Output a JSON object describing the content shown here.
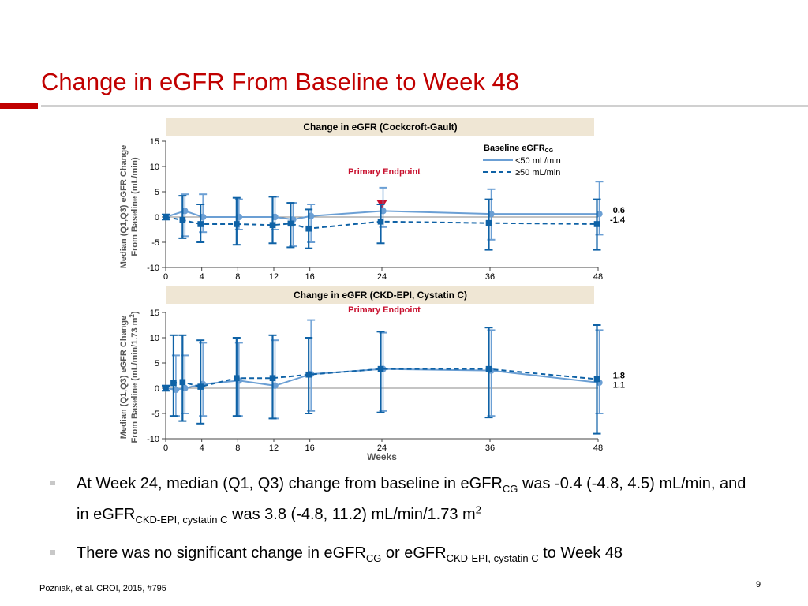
{
  "slide": {
    "title": "Change in eGFR From Baseline to Week 48",
    "page_number": "9",
    "footer": "Pozniak, et al. CROI, 2015, #795"
  },
  "colors": {
    "accent": "#c00000",
    "series_lt50": "#6b9fd4",
    "series_ge50": "#0f62a6",
    "panel_header": "#efe6d4",
    "primary_marker": "#c8102e"
  },
  "bullets": [
    {
      "t1": "At Week 24, median (Q1, Q3) change from baseline in eGFR",
      "sub1": "CG",
      "t2": " was -0.4 (-4.8, 4.5) mL/min, and in eGFR",
      "sub2": "CKD-EPI, cystatin C",
      "t3": " was 3.8 (-4.8, 11.2) mL/min/1.73 m",
      "sup1": "2"
    },
    {
      "t1": "There was no significant change in eGFR",
      "sub1": "CG",
      "t2": " or eGFR",
      "sub2": "CKD-EPI, cystatin C",
      "t3": " to Week 48"
    }
  ],
  "chart_data": [
    {
      "type": "line",
      "title": "Change in eGFR (Cockcroft-Gault)",
      "ylabel_line1": "Median (Q1,Q3) eGFR Change",
      "ylabel_line2": "From Baseline (mL/min)",
      "xlabel": "",
      "x": [
        0,
        1,
        2,
        3,
        5,
        10,
        14,
        17,
        26,
        38,
        50
      ],
      "xticks": [
        0,
        4,
        8,
        12,
        16,
        24,
        36,
        48
      ],
      "xlim": [
        0,
        48
      ],
      "yticks": [
        -10,
        -5,
        0,
        5,
        10,
        15
      ],
      "ylim": [
        -10,
        15
      ],
      "legend_title": "Baseline eGFR",
      "legend_title_sub": "CG",
      "primary_endpoint_label": "Primary Endpoint",
      "primary_endpoint_week": 24,
      "series": [
        {
          "name": "<50 mL/min",
          "style": "solid",
          "x": [
            0,
            2,
            4,
            8,
            12,
            14,
            16,
            24,
            36,
            48
          ],
          "values": [
            0,
            1.2,
            0,
            0,
            0,
            -0.5,
            0.2,
            1.2,
            0.6,
            0.6
          ],
          "q1": [
            -0.5,
            -3.8,
            -3.0,
            -2.5,
            -2.5,
            -5.8,
            -5.0,
            -2.0,
            -4.5,
            -3.5
          ],
          "q3": [
            0.5,
            4.5,
            4.5,
            3.5,
            4.0,
            2.8,
            2.5,
            5.8,
            5.5,
            7.0
          ],
          "end_label": "0.6"
        },
        {
          "name": "≥50 mL/min",
          "style": "dashed",
          "x": [
            0,
            2,
            4,
            8,
            12,
            14,
            16,
            24,
            36,
            48
          ],
          "values": [
            0,
            -0.6,
            -1.4,
            -1.4,
            -1.6,
            -1.3,
            -2.3,
            -0.9,
            -1.2,
            -1.4
          ],
          "q1": [
            -0.5,
            -4.2,
            -5.0,
            -5.5,
            -5.2,
            -6.0,
            -6.2,
            -5.2,
            -6.5,
            -6.5
          ],
          "q3": [
            0.5,
            4.2,
            2.5,
            3.8,
            4.0,
            2.8,
            1.5,
            2.5,
            3.5,
            3.5
          ],
          "end_label": "-1.4"
        }
      ]
    },
    {
      "type": "line",
      "title": "Change in eGFR (CKD-EPI, Cystatin C)",
      "ylabel_line1": "Median (Q1,Q3) eGFR Change",
      "ylabel_line2": "From Baseline (mL/min/1.73 m",
      "ylabel_sup": "2",
      "ylabel_close": ")",
      "xlabel": "Weeks",
      "xticks": [
        0,
        4,
        8,
        12,
        16,
        24,
        36,
        48
      ],
      "xlim": [
        0,
        48
      ],
      "yticks": [
        -10,
        -5,
        0,
        5,
        10,
        15
      ],
      "ylim": [
        -10,
        15
      ],
      "primary_endpoint_label": "Primary Endpoint",
      "primary_endpoint_week": 24,
      "series": [
        {
          "name": "<50 mL/min",
          "style": "solid",
          "x": [
            0,
            1,
            2,
            4,
            8,
            12,
            16,
            24,
            36,
            48
          ],
          "values": [
            0,
            -0.3,
            0,
            0.8,
            1.5,
            0.5,
            2.8,
            3.8,
            3.5,
            1.1
          ],
          "q1": [
            -0.5,
            -5.5,
            -5.0,
            -5.5,
            -5.5,
            -6.0,
            -4.5,
            -4.5,
            -5.5,
            -5.0
          ],
          "q3": [
            0.5,
            6.5,
            6.5,
            9.0,
            9.0,
            9.5,
            13.5,
            11.0,
            11.5,
            11.5
          ],
          "end_label": "1.1"
        },
        {
          "name": "≥50 mL/min",
          "style": "dashed",
          "x": [
            0,
            1,
            2,
            4,
            8,
            12,
            16,
            24,
            36,
            48
          ],
          "values": [
            0,
            1.0,
            1.2,
            0.3,
            2.0,
            2.0,
            2.7,
            3.8,
            3.8,
            1.8
          ],
          "q1": [
            -0.5,
            -5.5,
            -6.5,
            -7.0,
            -5.5,
            -6.0,
            -5.0,
            -4.8,
            -5.8,
            -9.0
          ],
          "q3": [
            0.5,
            10.5,
            10.5,
            9.5,
            10.0,
            10.5,
            10.0,
            11.2,
            12.0,
            12.5
          ],
          "end_label": "1.8"
        }
      ]
    }
  ]
}
